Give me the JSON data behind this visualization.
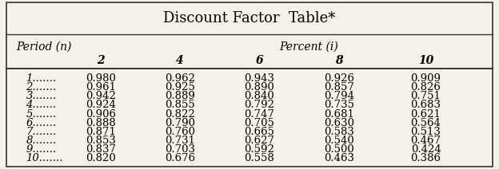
{
  "title": "Discount Factor  Table*",
  "col_header_left": "Period (n)",
  "col_header_right": "Percent (i)",
  "percent_labels": [
    "2",
    "4",
    "6",
    "8",
    "10"
  ],
  "rows": [
    [
      "1.......",
      "0.980",
      "0.962",
      "0.943",
      "0.926",
      "0.909"
    ],
    [
      "2.......",
      "0.961",
      "0.925",
      "0.890",
      "0.857",
      "0.826"
    ],
    [
      "3.......",
      "0.942",
      "0.889",
      "0.840",
      "0.794",
      "0.751"
    ],
    [
      "4.......",
      "0.924",
      "0.855",
      "0.792",
      "0.735",
      "0.683"
    ],
    [
      "5.......",
      "0.906",
      "0.822",
      "0.747",
      "0.681",
      "0.621"
    ],
    [
      "6.......",
      "0.888",
      "0.790",
      "0.705",
      "0.630",
      "0.564"
    ],
    [
      "7.......",
      "0.871",
      "0.760",
      "0.665",
      "0.583",
      "0.513"
    ],
    [
      "8.......",
      "0.853",
      "0.731",
      "0.627",
      "0.540",
      "0.467"
    ],
    [
      "9.......",
      "0.837",
      "0.703",
      "0.592",
      "0.500",
      "0.424"
    ],
    [
      "10.......",
      "0.820",
      "0.676",
      "0.558",
      "0.463",
      "0.386"
    ]
  ],
  "bg_color": "#f5f0e8",
  "border_color": "#333333",
  "title_fontsize": 13,
  "header_fontsize": 10,
  "data_fontsize": 9.5,
  "figsize": [
    6.24,
    2.12
  ]
}
